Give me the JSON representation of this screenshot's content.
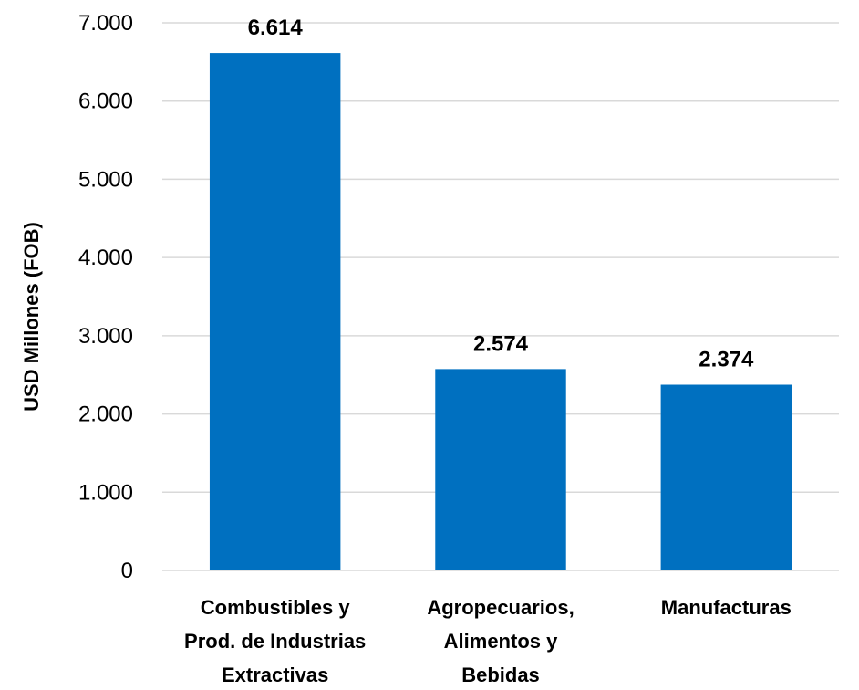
{
  "chart_data": {
    "type": "bar",
    "title": "",
    "xlabel": "",
    "ylabel": "USD Millones (FOB)",
    "ylim": [
      0,
      7000
    ],
    "yticks": [
      0,
      1000,
      2000,
      3000,
      4000,
      5000,
      6000,
      7000
    ],
    "ytick_labels": [
      "0",
      "1.000",
      "2.000",
      "3.000",
      "4.000",
      "5.000",
      "6.000",
      "7.000"
    ],
    "categories": [
      [
        "Combustibles y",
        "Prod. de Industrias",
        "Extractivas"
      ],
      [
        "Agropecuarios,",
        "Alimentos y",
        "Bebidas"
      ],
      [
        "Manufacturas"
      ]
    ],
    "values": [
      6614,
      2574,
      2374
    ],
    "value_labels": [
      "6.614",
      "2.574",
      "2.374"
    ],
    "bar_color": "#0070C0",
    "grid": true,
    "legend": "none"
  }
}
